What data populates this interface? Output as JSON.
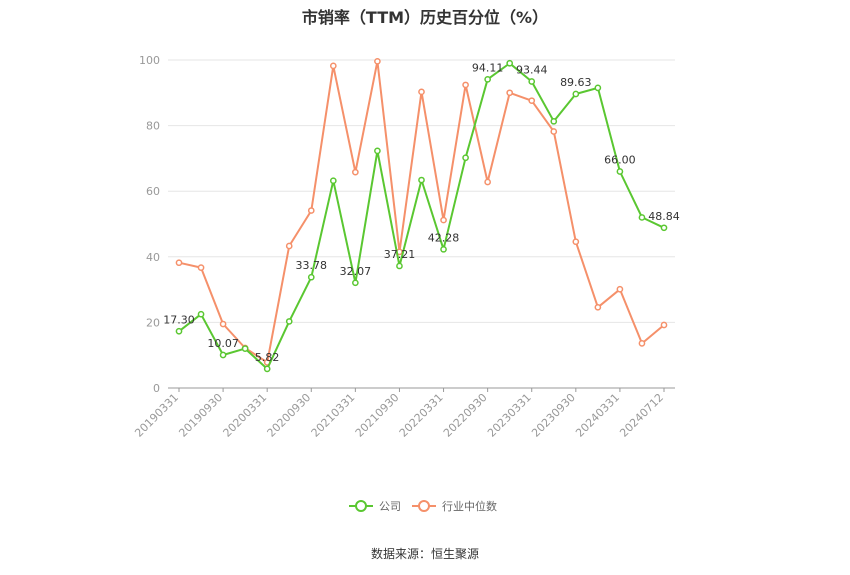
{
  "chart_data": {
    "type": "line",
    "title": "市销率（TTM）历史百分位（%）",
    "source": "数据来源：恒生聚源",
    "ylim": [
      0,
      100
    ],
    "yticks": [
      0,
      20,
      40,
      60,
      80,
      100
    ],
    "xtick_labels": [
      "20190331",
      "20190930",
      "20200331",
      "20200930",
      "20210331",
      "20210930",
      "20220331",
      "20220930",
      "20230331",
      "20230930",
      "20240331",
      "20240712"
    ],
    "grid": true,
    "legend_position": "bottom",
    "series": [
      {
        "name": "公司",
        "color": "#5ac731",
        "values": [
          17.3,
          22.5,
          10.07,
          12.0,
          5.82,
          20.3,
          33.78,
          63.2,
          32.07,
          72.3,
          37.21,
          63.4,
          42.28,
          70.2,
          94.11,
          99.0,
          93.44,
          81.3,
          89.63,
          91.5,
          66.0,
          52.0,
          48.84
        ],
        "data_labels": {
          "0": "17.30",
          "2": "10.07",
          "4": "5.82",
          "6": "33.78",
          "8": "32.07",
          "10": "37.21",
          "12": "42.28",
          "14": "94.11",
          "16": "93.44",
          "18": "89.63",
          "20": "66.00",
          "22": "48.84"
        }
      },
      {
        "name": "行业中位数",
        "color": "#f5906a",
        "values": [
          38.2,
          36.7,
          19.5,
          12.2,
          7.8,
          43.3,
          54.1,
          98.2,
          65.8,
          99.6,
          41.5,
          90.3,
          51.2,
          92.4,
          62.8,
          90.0,
          87.6,
          78.2,
          44.6,
          24.6,
          30.1,
          13.6,
          19.2
        ]
      }
    ]
  }
}
